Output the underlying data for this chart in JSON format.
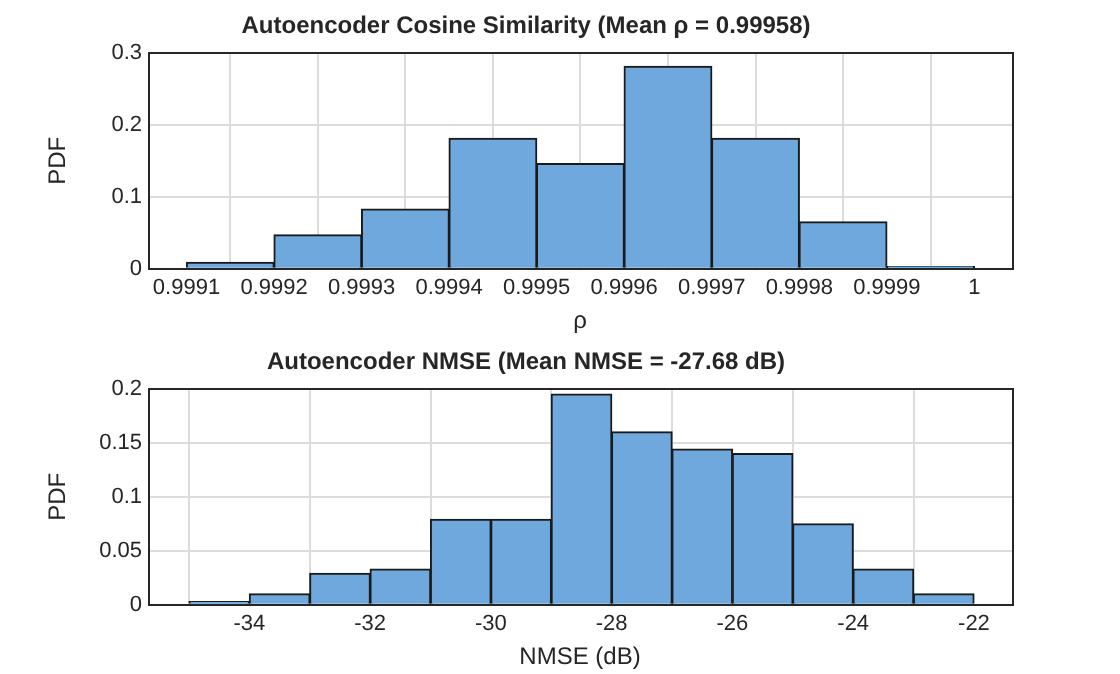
{
  "chart_data": [
    {
      "type": "histogram",
      "title": "Autoencoder Cosine Similarity (Mean ρ = 0.99958)",
      "xlabel": "ρ",
      "ylabel": "PDF",
      "color": "#6fa8dc",
      "bins": [
        0.9991,
        0.9992,
        0.9993,
        0.9994,
        0.9995,
        0.9996,
        0.9997,
        0.9998,
        0.9999,
        1
      ],
      "values": [
        0.009,
        0.047,
        0.083,
        0.181,
        0.146,
        0.281,
        0.181,
        0.065,
        0.003
      ],
      "xlim": [
        0.999056,
        1.000043
      ],
      "xticks": [
        0.9991,
        0.9992,
        0.9993,
        0.9994,
        0.9995,
        0.9996,
        0.9997,
        0.9998,
        0.9999,
        1
      ],
      "ylim": [
        0,
        0.3
      ],
      "yticks": [
        0,
        0.1,
        0.2,
        0.3
      ],
      "grid": true
    },
    {
      "type": "histogram",
      "title": "Autoencoder NMSE (Mean NMSE = -27.68 dB)",
      "xlabel": "NMSE (dB)",
      "ylabel": "PDF",
      "color": "#6fa8dc",
      "bins": [
        -35,
        -34,
        -33,
        -32,
        -31,
        -30,
        -29,
        -28,
        -27,
        -26,
        -25,
        -24,
        -23,
        -22
      ],
      "values": [
        0.003,
        0.01,
        0.029,
        0.033,
        0.079,
        0.079,
        0.195,
        0.16,
        0.144,
        0.14,
        0.075,
        0.033,
        0.01
      ],
      "xlim": [
        -35.68,
        -21.37
      ],
      "xticks": [
        -34,
        -32,
        -30,
        -28,
        -26,
        -24,
        -22
      ],
      "ylim": [
        0,
        0.2
      ],
      "yticks": [
        0,
        0.05,
        0.1,
        0.15,
        0.2
      ],
      "grid": true
    }
  ]
}
